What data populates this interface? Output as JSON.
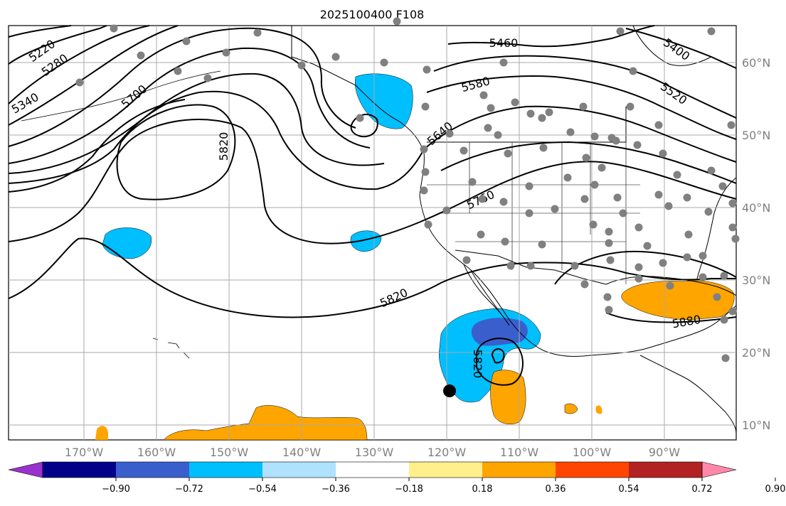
{
  "title": "2025100400 F108",
  "lat_labels": [
    "60°N",
    "50°N",
    "40°N",
    "30°N",
    "20°N",
    "10°N"
  ],
  "lon_labels": [
    "170°W",
    "160°W",
    "150°W",
    "140°W",
    "130°W",
    "120°W",
    "110°W",
    "100°W",
    "90°W"
  ],
  "contour_labels": [
    "5220",
    "5280",
    "5340",
    "5400",
    "5460",
    "5520",
    "5580",
    "5640",
    "5700",
    "5760",
    "5820",
    "5880"
  ],
  "colorbar": {
    "ticks": [
      "−0.90",
      "−0.72",
      "−0.54",
      "−0.36",
      "−0.18",
      "0.18",
      "0.36",
      "0.54",
      "0.72",
      "0.90"
    ],
    "colors": [
      "#9932cc",
      "#00008b",
      "#3a5fcd",
      "#00bfff",
      "#b0e2ff",
      "#ffffff",
      "#fff08c",
      "#ffa500",
      "#ff4500",
      "#b22222",
      "#ff88aa"
    ]
  },
  "colors": {
    "grid": "#a9a9a9",
    "station": "#808080",
    "labels": "#808080"
  }
}
